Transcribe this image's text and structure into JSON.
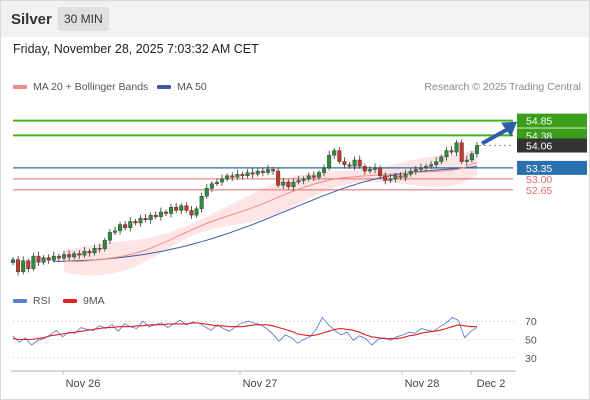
{
  "header": {
    "symbol": "Silver",
    "timeframe": "30 MIN",
    "timestamp": "Friday, November 28, 2025 7:03:32 AM CET"
  },
  "legend": {
    "ma20_label": "MA 20 + Bollinger Bands",
    "ma50_label": "MA 50",
    "credit": "Research © 2025 Trading Central",
    "rsi_label": "RSI",
    "rsi_ma_label": "9MA"
  },
  "colors": {
    "price_candles": "#2e8b3c",
    "bearish_candles": "#c0392b",
    "ma20": "#f28b82",
    "ma50": "#3b5ba9",
    "bollinger_fill": "#fde2e2",
    "resistance": "#4caf1f",
    "pivot": "#2c6e9e",
    "support": "#e36b6b",
    "last_price": "#333333",
    "arrow": "#2b5ea7",
    "rsi": "#5b7fd6",
    "rsi_ma": "#e02020"
  },
  "chart_data": [
    {
      "type": "line",
      "title": "Silver 30 MIN",
      "x_tick_labels": [
        "Nov 26",
        "Nov 27",
        "Nov 28",
        "Dec 2"
      ],
      "y_range": [
        49.6,
        55.6
      ],
      "levels": [
        {
          "label": "54.85",
          "value": 54.85,
          "kind": "resistance"
        },
        {
          "label": "54.38",
          "value": 54.38,
          "kind": "resistance"
        },
        {
          "label": "54.06",
          "value": 54.06,
          "kind": "last_price"
        },
        {
          "label": "53.35",
          "value": 53.35,
          "kind": "pivot"
        },
        {
          "label": "53.00",
          "value": 53.0,
          "kind": "support"
        },
        {
          "label": "52.65",
          "value": 52.65,
          "kind": "support"
        }
      ],
      "price_series": [
        50.44,
        50.05,
        50.4,
        50.15,
        50.55,
        50.35,
        50.5,
        50.42,
        50.55,
        50.48,
        50.6,
        50.52,
        50.63,
        50.58,
        50.7,
        50.65,
        50.8,
        50.78,
        51.05,
        51.3,
        51.35,
        51.55,
        51.45,
        51.65,
        51.6,
        51.75,
        51.7,
        51.85,
        51.8,
        51.95,
        51.9,
        52.1,
        52.0,
        52.15,
        52.0,
        51.85,
        52.05,
        52.45,
        52.7,
        52.85,
        52.9,
        53.0,
        53.1,
        53.05,
        53.15,
        53.1,
        53.2,
        53.15,
        53.25,
        53.2,
        53.3,
        53.25,
        52.8,
        52.9,
        52.75,
        52.9,
        52.95,
        53.0,
        53.1,
        53.05,
        53.2,
        53.35,
        53.75,
        53.9,
        53.55,
        53.45,
        53.4,
        53.6,
        53.4,
        53.25,
        53.3,
        53.35,
        53.1,
        52.95,
        53.0,
        53.1,
        53.05,
        53.15,
        53.25,
        53.3,
        53.35,
        53.4,
        53.45,
        53.55,
        53.7,
        53.9,
        53.85,
        54.15,
        53.55,
        53.6,
        53.8,
        54.06
      ],
      "ma20": [
        50.4,
        50.38,
        50.38,
        50.39,
        50.41,
        50.43,
        50.46,
        50.49,
        50.52,
        50.56,
        50.61,
        50.67,
        50.74,
        50.82,
        50.91,
        51.0,
        51.1,
        51.2,
        51.3,
        51.4,
        51.49,
        51.58,
        51.66,
        51.74,
        51.81,
        51.88,
        51.95,
        52.02,
        52.1,
        52.18,
        52.27,
        52.36,
        52.45,
        52.54,
        52.62,
        52.7,
        52.77,
        52.84,
        52.9,
        52.95,
        53.0,
        53.03,
        53.05,
        53.07,
        53.09,
        53.1,
        53.12,
        53.13,
        53.15,
        53.17,
        53.18,
        53.2,
        53.21,
        53.22,
        53.23,
        53.24,
        53.25,
        53.27,
        53.3,
        53.35,
        53.45,
        53.52
      ],
      "ma50": [
        50.38,
        50.38,
        50.39,
        50.4,
        50.41,
        50.42,
        50.43,
        50.45,
        50.47,
        50.49,
        50.51,
        50.54,
        50.57,
        50.6,
        50.64,
        50.68,
        50.72,
        50.77,
        50.82,
        50.87,
        50.93,
        50.99,
        51.05,
        51.12,
        51.19,
        51.26,
        51.34,
        51.42,
        51.5,
        51.58,
        51.67,
        51.76,
        51.85,
        51.94,
        52.03,
        52.12,
        52.21,
        52.3,
        52.39,
        52.48,
        52.56,
        52.64,
        52.72,
        52.79,
        52.86,
        52.92,
        52.98,
        53.03,
        53.08,
        53.12,
        53.16,
        53.19,
        53.22,
        53.24,
        53.26,
        53.28,
        53.3,
        53.31,
        53.33,
        53.35,
        53.37,
        53.4
      ],
      "rsi_panel": {
        "y_ticks": [
          "70",
          "50",
          "30"
        ],
        "y_range": [
          20,
          80
        ],
        "rsi": [
          54,
          47,
          52,
          44,
          49,
          51,
          55,
          60,
          53,
          58,
          57,
          63,
          61,
          60,
          65,
          62,
          66,
          59,
          67,
          64,
          62,
          70,
          64,
          66,
          68,
          63,
          67,
          71,
          66,
          69,
          68,
          64,
          60,
          66,
          62,
          59,
          64,
          68,
          70,
          68,
          66,
          62,
          56,
          48,
          55,
          52,
          46,
          50,
          53,
          61,
          74,
          66,
          60,
          55,
          58,
          49,
          54,
          51,
          44,
          50,
          52,
          49,
          53,
          55,
          58,
          57,
          62,
          60,
          59,
          64,
          68,
          74,
          71,
          52,
          59,
          63
        ],
        "rsi_ma": [
          51,
          50,
          50,
          50,
          51,
          52,
          54,
          55,
          56,
          57,
          58,
          59,
          60,
          61,
          62,
          63,
          63,
          64,
          64,
          64,
          65,
          65,
          66,
          66,
          66,
          67,
          67,
          67,
          67,
          68,
          68,
          67,
          66,
          65,
          65,
          64,
          64,
          64,
          65,
          66,
          66,
          66,
          65,
          63,
          61,
          59,
          56,
          55,
          54,
          55,
          57,
          59,
          61,
          62,
          61,
          60,
          58,
          55,
          53,
          52,
          51,
          51,
          51,
          52,
          54,
          55,
          57,
          58,
          59,
          60,
          62,
          64,
          66,
          65,
          64,
          64
        ]
      },
      "forecast_arrow": {
        "from": 54.06,
        "to": 54.85
      }
    }
  ]
}
